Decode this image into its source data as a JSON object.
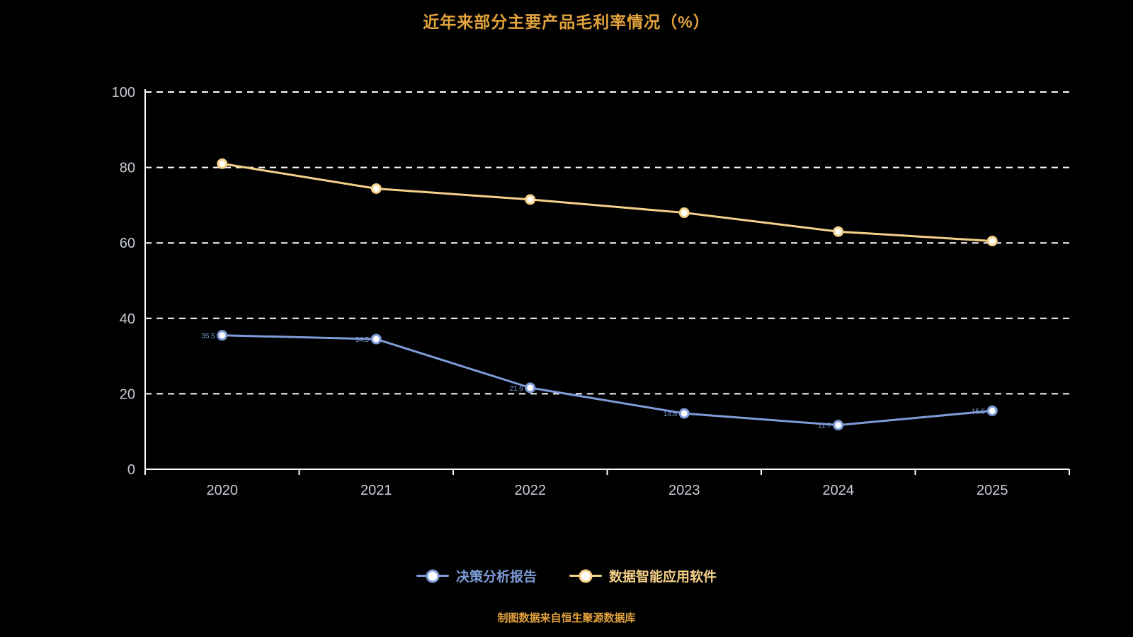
{
  "title": "近年来部分主要产品毛利率情况（%）",
  "footer": "制图数据来自恒生聚源数据库",
  "colors": {
    "background": "#000000",
    "title_text": "#e2a23c",
    "axis_line": "#ffffff",
    "grid_line": "#ffffff",
    "tick_label": "#c6cbd4",
    "series_blue": "#7e9cd8",
    "series_yellow": "#f6d189"
  },
  "chart_data": {
    "type": "line",
    "x": [
      "2020",
      "2021",
      "2022",
      "2023",
      "2024",
      "2025"
    ],
    "series": [
      {
        "name": "决策分析报告",
        "color": "#7e9cd8",
        "values": [
          35.5,
          34.5,
          21.6,
          14.8,
          11.7,
          15.5
        ],
        "show_labels": true
      },
      {
        "name": "数据智能应用软件",
        "color": "#f6d189",
        "values": [
          81.0,
          74.4,
          71.5,
          68.0,
          63.0,
          60.5
        ],
        "show_labels": false
      }
    ],
    "ylim": [
      0,
      100
    ],
    "yticks": [
      0,
      20,
      40,
      60,
      80,
      100
    ],
    "grid": "horizontal-dashed",
    "legend_position": "bottom"
  }
}
